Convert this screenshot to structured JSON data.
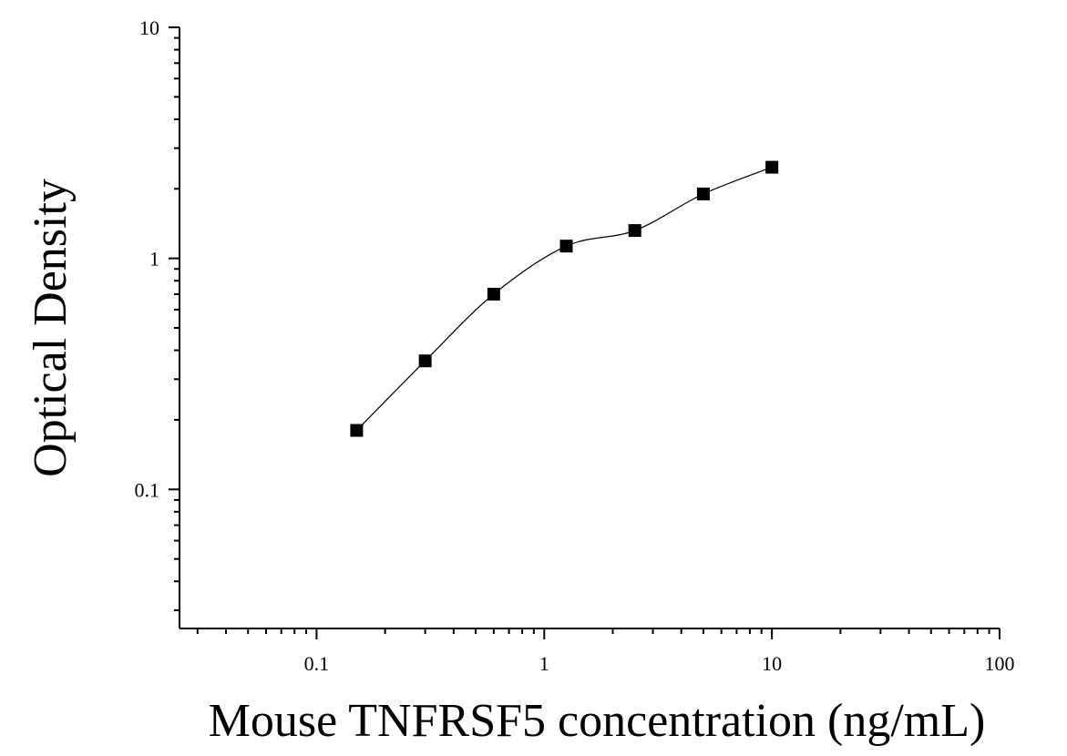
{
  "chart_data": {
    "type": "scatter",
    "title": "",
    "xlabel": "Mouse TNFRSF5 concentration (ng/mL)",
    "ylabel": "Optical Density",
    "x_scale": "log",
    "y_scale": "log",
    "xlim": [
      0.025,
      100
    ],
    "ylim": [
      0.025,
      10
    ],
    "x_ticks": [
      {
        "value": 0.1,
        "label": "0.1"
      },
      {
        "value": 1,
        "label": "1"
      },
      {
        "value": 10,
        "label": "10"
      },
      {
        "value": 100,
        "label": "100"
      }
    ],
    "y_ticks": [
      {
        "value": 0.1,
        "label": "0.1"
      },
      {
        "value": 1,
        "label": "1"
      },
      {
        "value": 10,
        "label": "10"
      }
    ],
    "grid": false,
    "legend": "none",
    "series": [
      {
        "x": [
          0.15,
          0.3,
          0.6,
          1.25,
          2.5,
          5,
          10
        ],
        "y": [
          0.18,
          0.36,
          0.7,
          1.13,
          1.32,
          1.9,
          2.48
        ],
        "marker": "square",
        "color": "#000000",
        "fit_curve": true
      }
    ]
  }
}
